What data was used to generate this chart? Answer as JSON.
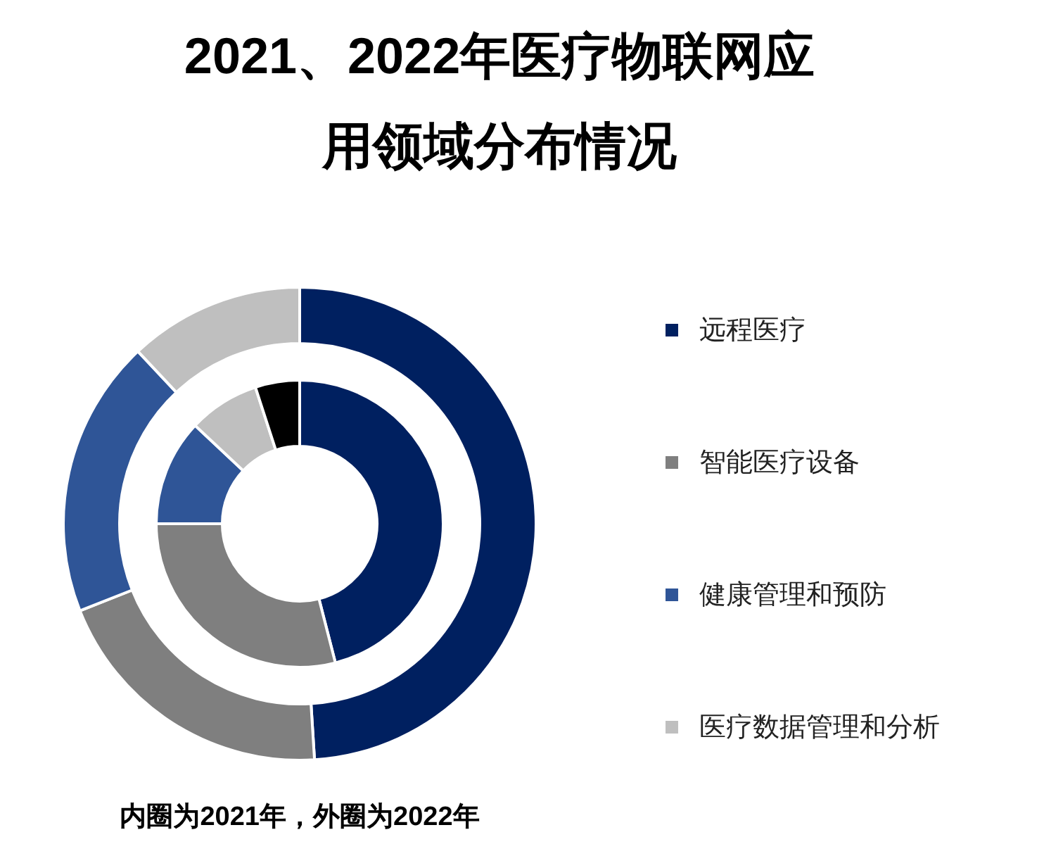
{
  "chart_data": {
    "type": "donut",
    "title": "2021、2022年医疗物联网应用领域分布情况",
    "categories": [
      "远程医疗",
      "智能医疗设备",
      "健康管理和预防",
      "医疗数据管理和分析",
      null
    ],
    "colors": [
      "#002060",
      "#7f7f7f",
      "#2f5597",
      "#bfbfbf",
      "#000000"
    ],
    "series": [
      {
        "values": [
          49,
          20,
          19,
          12,
          null
        ]
      },
      {
        "values": [
          46,
          29,
          12,
          8,
          5
        ]
      }
    ],
    "annotations": [
      "内圈为2021年，外圈为2022年"
    ],
    "legend": "right"
  }
}
